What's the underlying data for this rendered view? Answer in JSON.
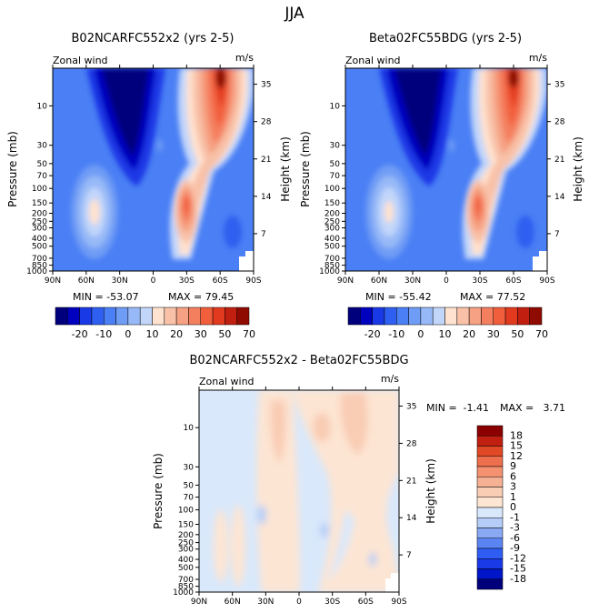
{
  "suptitle": "JJA",
  "palette": {
    "full": [
      "#00007d",
      "#0000bf",
      "#1a39e6",
      "#2e5ff0",
      "#4a7ff5",
      "#6f9cf5",
      "#97b9f7",
      "#c2d6fa",
      "#ffe2cf",
      "#f8c1a8",
      "#f6a183",
      "#f47f5f",
      "#f15e3c",
      "#e23a1e",
      "#c11f0f",
      "#8f0a00"
    ],
    "diff": [
      "#00007a",
      "#0016c8",
      "#1a3ae8",
      "#2f5df3",
      "#5a84f2",
      "#8aa9f4",
      "#b5cdf7",
      "#d9e8fb",
      "#fde5d3",
      "#f9ccb4",
      "#f6b093",
      "#f39170",
      "#ee6f4d",
      "#e14826",
      "#c11f0f",
      "#8b0000"
    ]
  },
  "chart_data": [
    {
      "type": "heatmap",
      "title": "B02NCARFC552x2 (yrs 2-5)",
      "left_label": "Zonal wind",
      "units": "m/s",
      "ylabel": "Pressure (mb)",
      "y2label": "Height (km)",
      "x_ticks": [
        "90N",
        "60N",
        "30N",
        "0",
        "30S",
        "60S",
        "90S"
      ],
      "p_ticks": [
        "10",
        "30",
        "50",
        "70",
        "100",
        "150",
        "200",
        "250",
        "300",
        "400",
        "500",
        "700",
        "850",
        "1000"
      ],
      "h_ticks": [
        "35",
        "28",
        "21",
        "14",
        "7"
      ],
      "min_label": "MIN = -53.07",
      "max_label": "MAX = 79.45",
      "cb_labels": [
        "-20",
        "-10",
        "0",
        "10",
        "20",
        "30",
        "50",
        "70"
      ],
      "min": -53.07,
      "max": 79.45
    },
    {
      "type": "heatmap",
      "title": "Beta02FC55BDG (yrs 2-5)",
      "left_label": "Zonal wind",
      "units": "m/s",
      "ylabel": "Pressure (mb)",
      "y2label": "Height (km)",
      "x_ticks": [
        "90N",
        "60N",
        "30N",
        "0",
        "30S",
        "60S",
        "90S"
      ],
      "p_ticks": [
        "10",
        "30",
        "50",
        "70",
        "100",
        "150",
        "200",
        "250",
        "300",
        "400",
        "500",
        "700",
        "850",
        "1000"
      ],
      "h_ticks": [
        "35",
        "28",
        "21",
        "14",
        "7"
      ],
      "min_label": "MIN = -55.42",
      "max_label": "MAX = 77.52",
      "cb_labels": [
        "-20",
        "-10",
        "0",
        "10",
        "20",
        "30",
        "50",
        "70"
      ],
      "min": -55.42,
      "max": 77.52
    },
    {
      "type": "heatmap",
      "title": "B02NCARFC552x2 - Beta02FC55BDG",
      "left_label": "Zonal wind",
      "units": "m/s",
      "ylabel": "Pressure (mb)",
      "y2label": "Height (km)",
      "x_ticks": [
        "90N",
        "60N",
        "30N",
        "0",
        "30S",
        "60S",
        "90S"
      ],
      "p_ticks": [
        "10",
        "30",
        "50",
        "70",
        "100",
        "150",
        "200",
        "250",
        "300",
        "400",
        "500",
        "700",
        "850",
        "1000"
      ],
      "h_ticks": [
        "35",
        "28",
        "21",
        "14",
        "7"
      ],
      "min_text": "MIN =",
      "min_value": "-1.41",
      "max_text": "MAX =",
      "max_value": "3.71",
      "cb_labels": [
        "18",
        "15",
        "12",
        "9",
        "6",
        "3",
        "1",
        "0",
        "-1",
        "-3",
        "-6",
        "-9",
        "-12",
        "-15",
        "-18"
      ],
      "min": -1.41,
      "max": 3.71
    }
  ]
}
